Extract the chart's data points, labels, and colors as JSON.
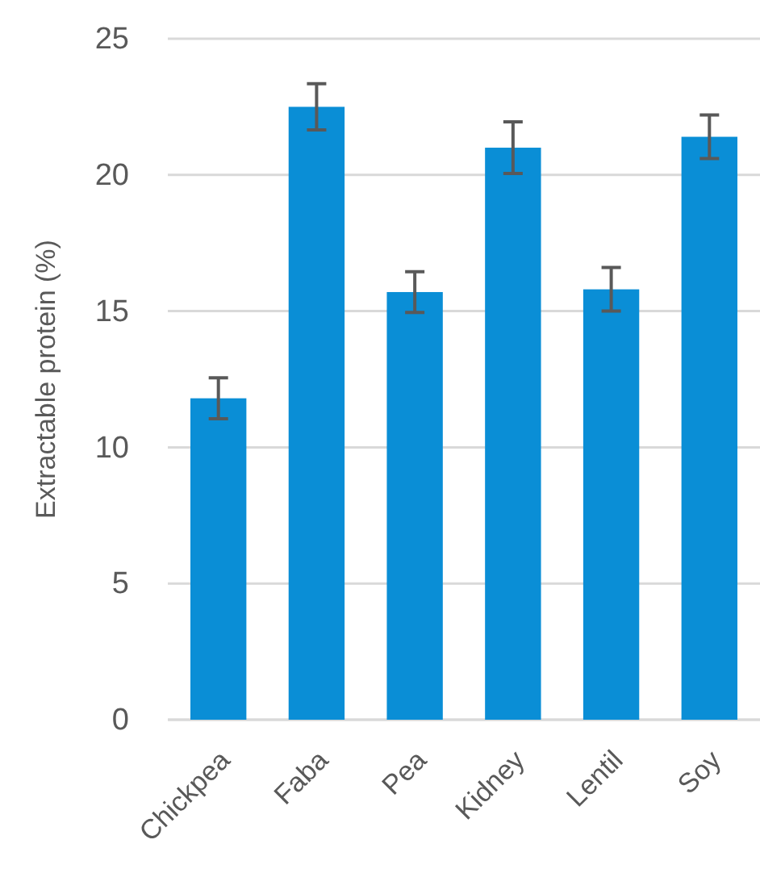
{
  "chart_data": {
    "type": "bar",
    "ylabel": "Extractable protein (%)",
    "categories": [
      "Chickpea",
      "Faba",
      "Pea",
      "Kidney",
      "Lentil",
      "Soy"
    ],
    "values": [
      11.8,
      22.5,
      15.7,
      21.0,
      15.8,
      21.4
    ],
    "errors": [
      0.75,
      0.85,
      0.75,
      0.95,
      0.8,
      0.8
    ],
    "color": "#0a8ed6",
    "ylim": [
      0,
      25
    ],
    "yticks": [
      0,
      5,
      10,
      15,
      20,
      25
    ],
    "grid": "y"
  }
}
